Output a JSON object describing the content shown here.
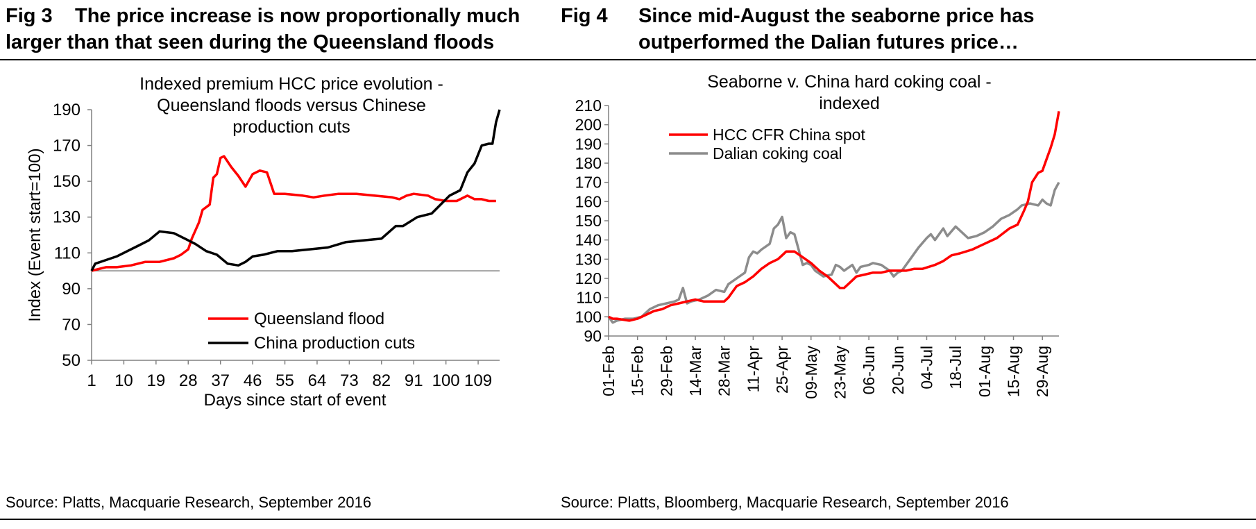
{
  "fig3": {
    "fig_label": "Fig 3",
    "title_line1": "The price increase is now proportionally much",
    "title_line2": "larger than that seen during the Queensland floods",
    "source": "Source: Platts, Macquarie Research, September 2016"
  },
  "fig4": {
    "fig_label": "Fig 4",
    "title_line1": "Since mid-August the seaborne price has",
    "title_line2": "outperformed the Dalian futures price…",
    "source": "Source: Platts, Bloomberg, Macquarie Research, September 2016"
  },
  "colors": {
    "red": "#ff0000",
    "black": "#000000",
    "grey": "#8c8c8c",
    "baseline": "#808080"
  },
  "chart_data": [
    {
      "type": "line",
      "title_lines": [
        "Indexed premium HCC price evolution -",
        "Queensland  floods versus Chinese",
        "production cuts"
      ],
      "xlabel": "Days since start of event",
      "ylabel": "Index (Event start=100)",
      "xlim": [
        1,
        115
      ],
      "ylim": [
        50,
        190
      ],
      "x_ticks": [
        1,
        10,
        19,
        28,
        37,
        46,
        55,
        64,
        73,
        82,
        91,
        100,
        109
      ],
      "y_ticks": [
        50,
        70,
        90,
        110,
        130,
        150,
        170,
        190
      ],
      "reference_line": 100,
      "legend_position": "lower-center",
      "series": [
        {
          "name": "Queensland flood",
          "color": "#ff0000",
          "x": [
            1,
            3,
            5,
            8,
            12,
            16,
            20,
            24,
            26,
            28,
            29,
            31,
            32,
            34,
            35,
            36,
            37,
            38,
            40,
            42,
            44,
            46,
            48,
            50,
            52,
            55,
            60,
            63,
            66,
            70,
            75,
            80,
            85,
            87,
            89,
            91,
            95,
            97,
            100,
            103,
            106,
            108,
            110,
            112,
            114
          ],
          "y": [
            100,
            101,
            102,
            102,
            103,
            105,
            105,
            107,
            109,
            112,
            118,
            127,
            134,
            137,
            152,
            154,
            163,
            164,
            158,
            153,
            147,
            154,
            156,
            155,
            143,
            143,
            142,
            141,
            142,
            143,
            143,
            142,
            141,
            140,
            142,
            143,
            142,
            140,
            139,
            139,
            142,
            140,
            140,
            139,
            139
          ]
        },
        {
          "name": "China production cuts",
          "color": "#000000",
          "x": [
            1,
            2,
            5,
            8,
            11,
            14,
            17,
            20,
            24,
            28,
            30,
            33,
            36,
            39,
            42,
            44,
            46,
            49,
            53,
            57,
            62,
            67,
            72,
            77,
            82,
            86,
            88,
            92,
            96,
            99,
            101,
            104,
            106,
            108,
            110,
            112,
            113,
            114,
            115
          ],
          "y": [
            100,
            104,
            106,
            108,
            111,
            114,
            117,
            122,
            121,
            117,
            115,
            111,
            109,
            104,
            103,
            105,
            108,
            109,
            111,
            111,
            112,
            113,
            116,
            117,
            118,
            125,
            125,
            130,
            132,
            138,
            142,
            145,
            155,
            160,
            170,
            171,
            171,
            183,
            190
          ]
        }
      ]
    },
    {
      "type": "line",
      "title_lines": [
        "Seaborne v. China hard  coking coal -",
        "indexed"
      ],
      "xlabel": "",
      "ylabel": "",
      "xlim": [
        0,
        218
      ],
      "ylim": [
        90,
        210
      ],
      "x_tick_labels": [
        "01-Feb",
        "15-Feb",
        "29-Feb",
        "14-Mar",
        "28-Mar",
        "11-Apr",
        "25-Apr",
        "09-May",
        "23-May",
        "06-Jun",
        "20-Jun",
        "04-Jul",
        "18-Jul",
        "01-Aug",
        "15-Aug",
        "29-Aug"
      ],
      "x_tick_positions": [
        0,
        14,
        28,
        42,
        56,
        70,
        84,
        98,
        112,
        126,
        140,
        154,
        168,
        182,
        196,
        210
      ],
      "y_ticks": [
        90,
        100,
        110,
        120,
        130,
        140,
        150,
        160,
        170,
        180,
        190,
        200,
        210
      ],
      "legend_position": "top-left",
      "series": [
        {
          "name": "HCC CFR China spot",
          "color": "#ff0000",
          "x": [
            0,
            2,
            4,
            10,
            14,
            18,
            22,
            26,
            30,
            34,
            38,
            42,
            46,
            50,
            56,
            58,
            60,
            62,
            66,
            70,
            74,
            78,
            82,
            84,
            86,
            88,
            90,
            94,
            98,
            102,
            106,
            110,
            112,
            114,
            118,
            120,
            124,
            128,
            132,
            136,
            140,
            144,
            148,
            152,
            158,
            162,
            166,
            170,
            176,
            182,
            188,
            194,
            198,
            201,
            203,
            205,
            208,
            210,
            212,
            214,
            216,
            218
          ],
          "y": [
            100,
            99,
            99,
            98,
            99,
            101,
            103,
            104,
            106,
            107,
            108,
            109,
            108,
            108,
            108,
            110,
            113,
            116,
            118,
            121,
            125,
            128,
            130,
            132,
            134,
            134,
            134,
            131,
            128,
            124,
            121,
            117,
            115,
            115,
            119,
            121,
            122,
            123,
            123,
            124,
            124,
            124,
            125,
            125,
            127,
            129,
            132,
            133,
            135,
            138,
            141,
            146,
            148,
            155,
            160,
            170,
            175,
            176,
            182,
            188,
            195,
            207
          ]
        },
        {
          "name": "Dalian coking coal",
          "color": "#8c8c8c",
          "x": [
            0,
            2,
            4,
            8,
            12,
            16,
            20,
            24,
            28,
            32,
            34,
            36,
            38,
            40,
            44,
            48,
            52,
            56,
            58,
            62,
            66,
            68,
            70,
            72,
            74,
            78,
            80,
            82,
            84,
            86,
            88,
            90,
            92,
            94,
            96,
            98,
            100,
            104,
            108,
            110,
            112,
            114,
            118,
            120,
            122,
            126,
            128,
            132,
            136,
            138,
            140,
            142,
            146,
            150,
            154,
            156,
            158,
            162,
            164,
            168,
            170,
            174,
            178,
            182,
            186,
            190,
            194,
            198,
            200,
            204,
            208,
            210,
            212,
            214,
            216,
            218
          ],
          "y": [
            100,
            97,
            98,
            99,
            99,
            100,
            104,
            106,
            107,
            108,
            109,
            115,
            107,
            108,
            109,
            111,
            114,
            113,
            117,
            120,
            123,
            131,
            134,
            133,
            135,
            138,
            146,
            148,
            152,
            141,
            144,
            143,
            135,
            127,
            128,
            127,
            124,
            121,
            122,
            127,
            126,
            124,
            127,
            123,
            126,
            127,
            128,
            127,
            124,
            121,
            123,
            124,
            130,
            136,
            141,
            143,
            140,
            146,
            142,
            147,
            145,
            141,
            142,
            144,
            147,
            151,
            153,
            156,
            158,
            159,
            158,
            161,
            159,
            158,
            166,
            170
          ]
        }
      ]
    }
  ]
}
